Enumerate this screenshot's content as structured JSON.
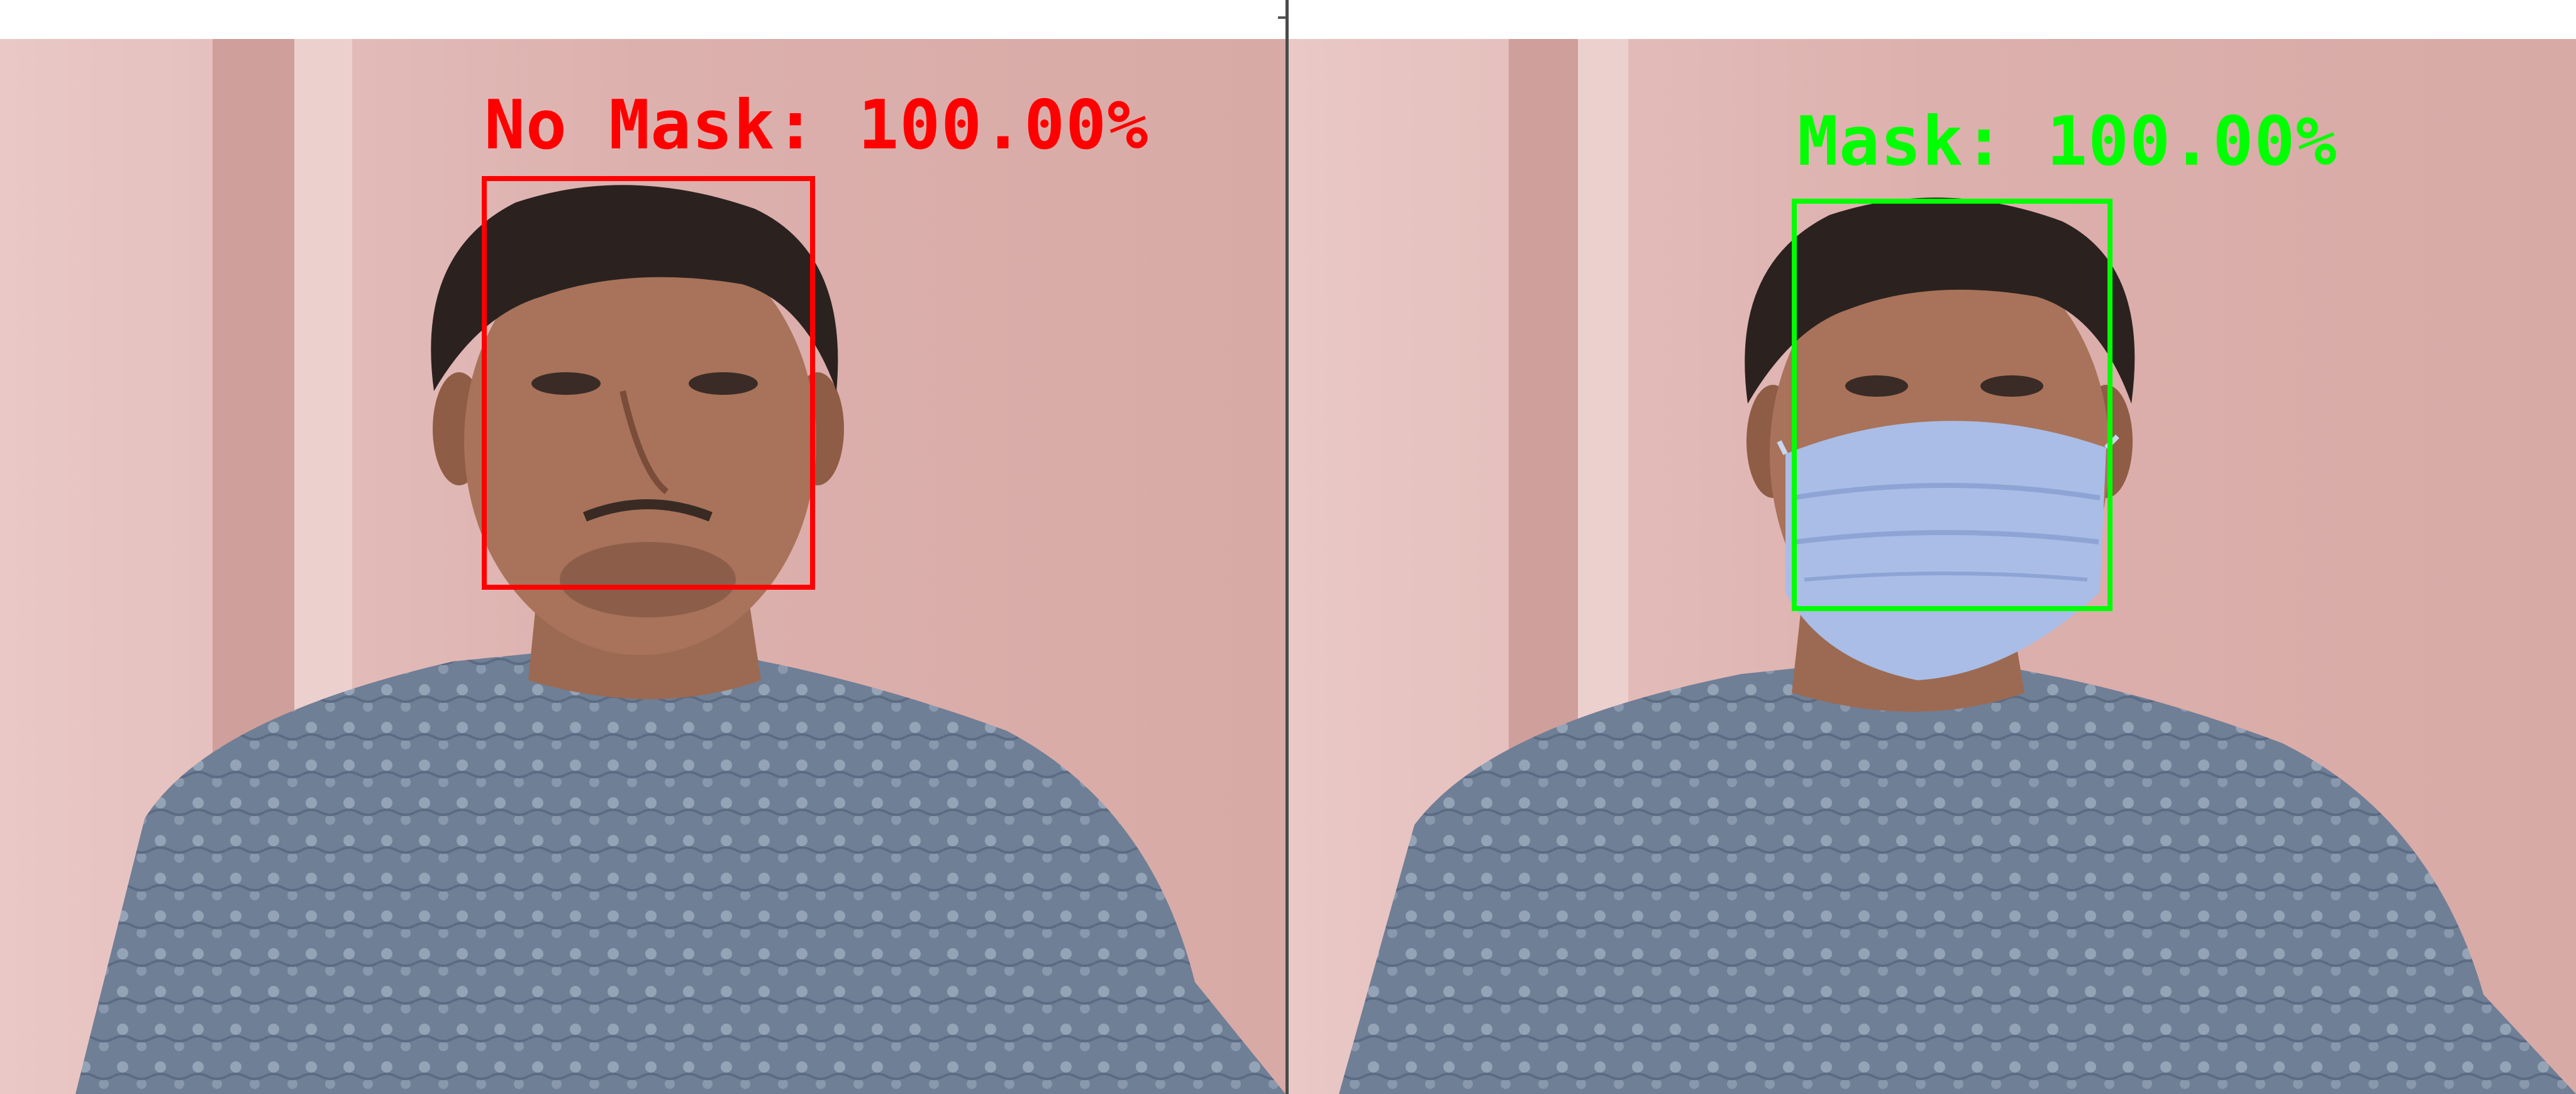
{
  "panels": [
    {
      "label": "No Mask: 100.00%",
      "color": "#ff0000",
      "mask": false
    },
    {
      "label": "Mask: 100.00%",
      "color": "#00ff00",
      "mask": true
    }
  ],
  "icons": [
    "person-photo",
    "face-mask",
    "detection-box"
  ]
}
